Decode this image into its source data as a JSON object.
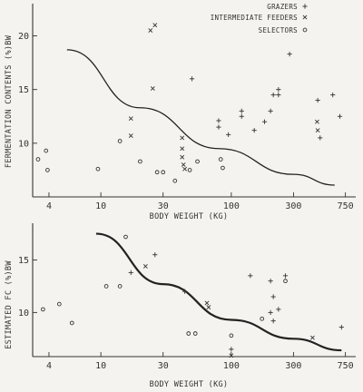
{
  "chart_data": [
    {
      "type": "scatter",
      "xscale": "log",
      "xlim": [
        3,
        900
      ],
      "ylim": [
        5,
        23
      ],
      "xticks": [
        "4",
        "10",
        "30",
        "100",
        "300",
        "750"
      ],
      "xtick_values": [
        4,
        10,
        30,
        100,
        300,
        750
      ],
      "yticks": [
        "10",
        "15",
        "20"
      ],
      "ytick_values": [
        10,
        15,
        20
      ],
      "xlabel": "BODY WEIGHT (KG)",
      "ylabel": "FERMENTATION CONTENTS (%)BW",
      "legend_position": "top-right",
      "series": [
        {
          "name": "GRAZERS",
          "marker": "+",
          "points": [
            [
              50,
              16
            ],
            [
              80,
              12.1
            ],
            [
              80,
              11.5
            ],
            [
              95,
              10.8
            ],
            [
              120,
              12.5
            ],
            [
              120,
              13
            ],
            [
              150,
              11.2
            ],
            [
              180,
              12
            ],
            [
              200,
              13
            ],
            [
              210,
              14.5
            ],
            [
              230,
              14.5
            ],
            [
              230,
              15
            ],
            [
              280,
              18.3
            ],
            [
              460,
              14
            ],
            [
              600,
              14.5
            ],
            [
              680,
              12.5
            ],
            [
              480,
              10.5
            ]
          ]
        },
        {
          "name": "INTERMEDIATE FEEDERS",
          "marker": "x",
          "points": [
            [
              24,
              20.5
            ],
            [
              26,
              21
            ],
            [
              25,
              15.1
            ],
            [
              17,
              12.3
            ],
            [
              17,
              10.7
            ],
            [
              42,
              10.5
            ],
            [
              42,
              9.5
            ],
            [
              42,
              8.7
            ],
            [
              43,
              8
            ],
            [
              44,
              7.6
            ],
            [
              455,
              12
            ],
            [
              460,
              11.2
            ]
          ]
        },
        {
          "name": "SELECTORS",
          "marker": "o",
          "points": [
            [
              3.3,
              8.5
            ],
            [
              3.8,
              9.3
            ],
            [
              3.9,
              7.5
            ],
            [
              9.5,
              7.6
            ],
            [
              14,
              10.2
            ],
            [
              20,
              8.3
            ],
            [
              27,
              7.3
            ],
            [
              30,
              7.3
            ],
            [
              37,
              6.5
            ],
            [
              48,
              7.5
            ],
            [
              55,
              8.3
            ],
            [
              83,
              8.5
            ],
            [
              86,
              7.7
            ]
          ]
        }
      ],
      "curve": [
        [
          5.5,
          18.7
        ],
        [
          20,
          13.3
        ],
        [
          80,
          9.5
        ],
        [
          300,
          7.1
        ],
        [
          620,
          6.1
        ]
      ]
    },
    {
      "type": "scatter",
      "xscale": "log",
      "xlim": [
        3,
        900
      ],
      "ylim": [
        5.8,
        18.5
      ],
      "xticks": [
        "4",
        "10",
        "30",
        "100",
        "300",
        "750"
      ],
      "xtick_values": [
        4,
        10,
        30,
        100,
        300,
        750
      ],
      "yticks": [
        "10",
        "15"
      ],
      "ytick_values": [
        10,
        15
      ],
      "xlabel": "BODY WEIGHT (KG)",
      "ylabel": "ESTIMATED FC (%)BW",
      "series": [
        {
          "name": "GRAZERS",
          "marker": "+",
          "points": [
            [
              17,
              13.8
            ],
            [
              26,
              15.5
            ],
            [
              44,
              12
            ],
            [
              100,
              6.5
            ],
            [
              140,
              13.5
            ],
            [
              200,
              13
            ],
            [
              210,
              11.5
            ],
            [
              200,
              10
            ],
            [
              210,
              9.2
            ],
            [
              230,
              10.3
            ],
            [
              260,
              13.5
            ],
            [
              700,
              8.6
            ]
          ]
        },
        {
          "name": "INTERMEDIATE FEEDERS",
          "marker": "x",
          "points": [
            [
              22,
              14.4
            ],
            [
              65,
              10.9
            ],
            [
              67,
              10.5
            ],
            [
              100,
              5.9
            ],
            [
              420,
              7.6
            ]
          ]
        },
        {
          "name": "SELECTORS",
          "marker": "o",
          "points": [
            [
              3.6,
              10.3
            ],
            [
              4.8,
              10.8
            ],
            [
              6,
              9
            ],
            [
              11,
              12.5
            ],
            [
              14,
              12.5
            ],
            [
              15.5,
              17.2
            ],
            [
              47,
              8
            ],
            [
              53,
              8
            ],
            [
              100,
              7.8
            ],
            [
              172,
              9.4
            ],
            [
              260,
              13
            ]
          ]
        }
      ],
      "curve": [
        [
          9.2,
          17.5
        ],
        [
          30,
          12.7
        ],
        [
          100,
          9.3
        ],
        [
          300,
          7.5
        ],
        [
          700,
          6.4
        ]
      ]
    }
  ]
}
